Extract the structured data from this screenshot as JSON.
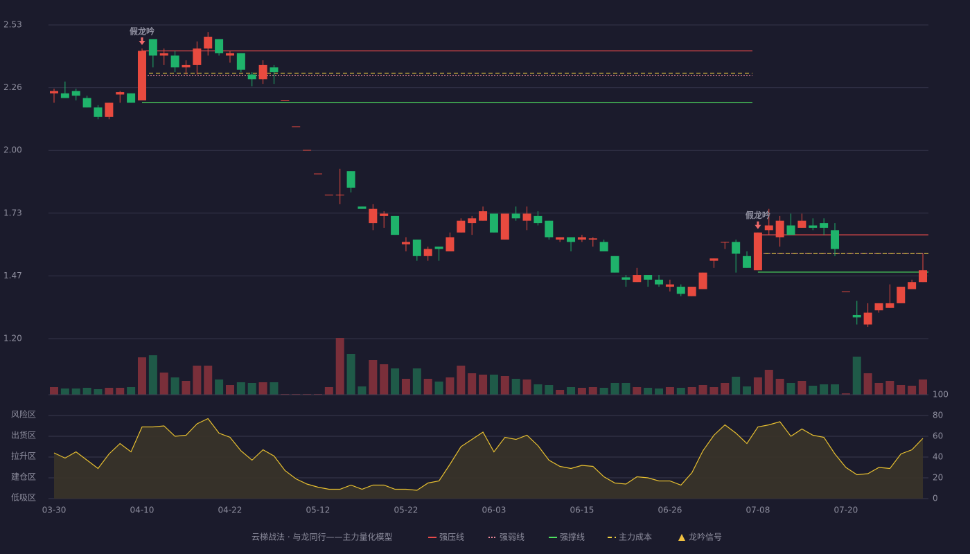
{
  "chart_data": [
    {
      "type": "candlestick",
      "up_color": "#e84a3f",
      "down_color": "#1fb36b",
      "ylim": [
        1.2,
        2.53
      ],
      "yticks": [
        {
          "value": 1.2,
          "label": "1.20"
        },
        {
          "value": 1.466,
          "label": "1.47"
        },
        {
          "value": 1.732,
          "label": "1.73"
        },
        {
          "value": 1.998,
          "label": "2.00"
        },
        {
          "value": 2.264,
          "label": "2.26"
        },
        {
          "value": 2.53,
          "label": "2.53"
        }
      ],
      "grid": true,
      "open": [
        2.24,
        2.24,
        2.25,
        2.22,
        2.18,
        2.14,
        2.235,
        2.24,
        2.21,
        2.47,
        2.4,
        2.4,
        2.35,
        2.36,
        2.43,
        2.47,
        2.4,
        2.41,
        2.32,
        2.3,
        2.35,
        2.21,
        2.1,
        2.0,
        1.9,
        1.81,
        1.81,
        1.91,
        1.76,
        1.69,
        1.72,
        1.72,
        1.6,
        1.62,
        1.55,
        1.59,
        1.57,
        1.65,
        1.69,
        1.7,
        1.73,
        1.62,
        1.73,
        1.7,
        1.72,
        1.7,
        1.62,
        1.63,
        1.62,
        1.62,
        1.61,
        1.55,
        1.46,
        1.44,
        1.47,
        1.45,
        1.42,
        1.42,
        1.38,
        1.41,
        1.53,
        1.61,
        1.61,
        1.55,
        1.49,
        1.66,
        1.63,
        1.68,
        1.67,
        1.68,
        1.69,
        1.66,
        1.4,
        1.3,
        1.26,
        1.32,
        1.33,
        1.35,
        1.41,
        1.44
      ],
      "high": [
        2.26,
        2.29,
        2.26,
        2.23,
        2.19,
        2.2,
        2.25,
        2.24,
        2.43,
        2.47,
        2.43,
        2.42,
        2.38,
        2.46,
        2.5,
        2.47,
        2.42,
        2.41,
        2.33,
        2.38,
        2.36,
        2.21,
        2.1,
        2.0,
        1.9,
        1.81,
        1.92,
        1.91,
        1.76,
        1.77,
        1.74,
        1.72,
        1.63,
        1.62,
        1.59,
        1.59,
        1.65,
        1.71,
        1.72,
        1.76,
        1.73,
        1.73,
        1.76,
        1.76,
        1.74,
        1.7,
        1.63,
        1.63,
        1.64,
        1.63,
        1.62,
        1.55,
        1.47,
        1.5,
        1.47,
        1.47,
        1.45,
        1.43,
        1.42,
        1.48,
        1.54,
        1.61,
        1.62,
        1.57,
        1.65,
        1.75,
        1.72,
        1.73,
        1.73,
        1.71,
        1.71,
        1.69,
        1.4,
        1.36,
        1.35,
        1.35,
        1.43,
        1.42,
        1.45,
        1.56
      ],
      "low": [
        2.2,
        2.22,
        2.21,
        2.18,
        2.13,
        2.13,
        2.2,
        2.2,
        2.21,
        2.35,
        2.36,
        2.33,
        2.32,
        2.32,
        2.4,
        2.4,
        2.37,
        2.33,
        2.27,
        2.28,
        2.28,
        2.21,
        2.1,
        2.0,
        1.9,
        1.81,
        1.77,
        1.82,
        1.75,
        1.66,
        1.67,
        1.64,
        1.57,
        1.53,
        1.53,
        1.53,
        1.57,
        1.65,
        1.64,
        1.7,
        1.65,
        1.62,
        1.7,
        1.66,
        1.68,
        1.62,
        1.61,
        1.57,
        1.61,
        1.59,
        1.57,
        1.48,
        1.42,
        1.44,
        1.42,
        1.42,
        1.4,
        1.38,
        1.38,
        1.41,
        1.5,
        1.58,
        1.48,
        1.5,
        1.49,
        1.64,
        1.59,
        1.64,
        1.67,
        1.66,
        1.64,
        1.55,
        1.4,
        1.26,
        1.25,
        1.31,
        1.33,
        1.35,
        1.41,
        1.44
      ],
      "close": [
        2.25,
        2.22,
        2.23,
        2.18,
        2.14,
        2.2,
        2.245,
        2.2,
        2.42,
        2.4,
        2.41,
        2.35,
        2.36,
        2.43,
        2.48,
        2.41,
        2.41,
        2.34,
        2.3,
        2.36,
        2.33,
        2.21,
        2.1,
        2.0,
        1.9,
        1.81,
        1.81,
        1.84,
        1.75,
        1.75,
        1.73,
        1.64,
        1.61,
        1.55,
        1.58,
        1.58,
        1.63,
        1.7,
        1.71,
        1.74,
        1.65,
        1.73,
        1.71,
        1.73,
        1.69,
        1.63,
        1.63,
        1.61,
        1.63,
        1.625,
        1.57,
        1.48,
        1.45,
        1.47,
        1.45,
        1.43,
        1.43,
        1.39,
        1.42,
        1.48,
        1.54,
        1.61,
        1.56,
        1.5,
        1.65,
        1.68,
        1.7,
        1.64,
        1.7,
        1.67,
        1.67,
        1.58,
        1.4,
        1.29,
        1.31,
        1.35,
        1.35,
        1.42,
        1.44,
        1.49
      ],
      "annotations": [
        {
          "text": "假龙吟",
          "index": 8,
          "color": "#f06a6a"
        },
        {
          "text": "假龙吟",
          "index": 64,
          "color": "#f06a6a"
        }
      ],
      "series": [
        {
          "name": "强压线",
          "color": "#e84a4a",
          "style": "solid",
          "segments": [
            {
              "start": 8,
              "end": 63,
              "value": 2.42
            },
            {
              "start": 64,
              "end": 79,
              "value": 1.64
            }
          ]
        },
        {
          "name": "强弱线",
          "color": "#f08a9a",
          "style": "dotted",
          "segments": [
            {
              "start": 8,
              "end": 63,
              "value": 2.315
            },
            {
              "start": 64,
              "end": 79,
              "value": 1.561
            }
          ]
        },
        {
          "name": "强撑线",
          "color": "#4ee060",
          "style": "solid",
          "segments": [
            {
              "start": 8,
              "end": 63,
              "value": 2.2
            },
            {
              "start": 64,
              "end": 79,
              "value": 1.482
            }
          ]
        },
        {
          "name": "主力成本",
          "color": "#f0d040",
          "style": "dashed",
          "segments": [
            {
              "start": 8,
              "end": 63,
              "value": 2.325
            },
            {
              "start": 64,
              "end": 79,
              "value": 1.561
            }
          ]
        }
      ],
      "signal": {
        "name": "龙吟信号",
        "color": "#f0c040"
      },
      "legend_title": "云梯战法 · 与龙同行——主力量化模型"
    },
    {
      "type": "bar",
      "up_color": "#7a2f3a",
      "down_color": "#1f5a48",
      "ylim": [
        0,
        82
      ],
      "values": [
        11,
        9,
        9,
        10,
        8,
        10,
        10,
        11,
        54,
        57,
        32,
        25,
        20,
        42,
        42,
        22,
        14,
        18,
        17,
        18,
        18,
        1,
        1,
        1,
        1,
        11,
        82,
        59,
        12,
        50,
        44,
        38,
        23,
        38,
        23,
        19,
        25,
        42,
        31,
        29,
        29,
        27,
        23,
        22,
        15,
        14,
        7,
        11,
        10,
        11,
        10,
        17,
        17,
        11,
        10,
        9,
        11,
        10,
        11,
        14,
        11,
        17,
        26,
        12,
        25,
        36,
        23,
        17,
        20,
        13,
        15,
        15,
        2,
        55,
        31,
        17,
        20,
        14,
        13,
        22
      ]
    },
    {
      "type": "line",
      "color": "#e8c030",
      "fill": "#3a3429",
      "categories": [
        "03-30",
        null,
        null,
        null,
        null,
        null,
        null,
        null,
        "04-10",
        null,
        null,
        null,
        null,
        null,
        null,
        null,
        "04-22",
        null,
        null,
        null,
        null,
        null,
        null,
        null,
        "05-12",
        null,
        null,
        null,
        null,
        null,
        null,
        null,
        "05-22",
        null,
        null,
        null,
        null,
        null,
        null,
        null,
        "06-03",
        null,
        null,
        null,
        null,
        null,
        null,
        null,
        "06-15",
        null,
        null,
        null,
        null,
        null,
        null,
        null,
        "06-26",
        null,
        null,
        null,
        null,
        null,
        null,
        null,
        "07-08",
        null,
        null,
        null,
        null,
        null,
        null,
        null,
        "07-20",
        null,
        null,
        null,
        null,
        null,
        null,
        null
      ],
      "values": [
        44,
        39,
        45,
        37,
        29,
        43,
        53,
        45,
        69,
        69,
        70,
        60,
        61,
        72,
        77,
        63,
        59,
        46,
        37,
        47,
        41,
        27,
        19,
        14,
        11,
        9,
        9,
        13,
        9,
        13,
        13,
        9,
        9,
        8,
        15,
        17,
        33,
        50,
        57,
        64,
        45,
        59,
        57,
        61,
        51,
        37,
        31,
        29,
        32,
        31,
        21,
        15,
        14,
        21,
        20,
        17,
        17,
        13,
        25,
        46,
        61,
        71,
        63,
        53,
        69,
        71,
        74,
        60,
        67,
        61,
        59,
        43,
        30,
        23,
        24,
        30,
        29,
        43,
        47,
        58
      ],
      "ylim": [
        0,
        100
      ],
      "yticks": [
        0,
        20,
        40,
        60,
        80,
        100
      ],
      "ytick_colors": [
        "#f04444",
        "#f0a030",
        "#4a8ff0",
        "#e040e0",
        "#f0a030",
        "#22dd55"
      ],
      "grid": true,
      "zones": [
        {
          "label": "风险区",
          "value": 80,
          "color": "#f0a030"
        },
        {
          "label": "出货区",
          "value": 60,
          "color": "#e040e0"
        },
        {
          "label": "拉升区",
          "value": 40,
          "color": "#4a8ff0"
        },
        {
          "label": "建仓区",
          "value": 20,
          "color": "#f05050"
        },
        {
          "label": "低吸区",
          "value": 0,
          "color": "#f05050"
        }
      ]
    }
  ]
}
